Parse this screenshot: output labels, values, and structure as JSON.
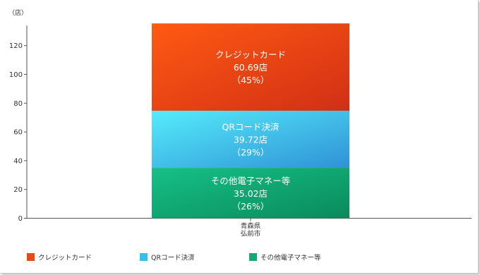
{
  "chart_data": {
    "type": "bar",
    "stacked": true,
    "y_unit_label": "（店）",
    "categories": [
      [
        "青森県",
        "弘前市"
      ]
    ],
    "ylim": [
      0,
      130
    ],
    "yticks": [
      0,
      20,
      40,
      60,
      80,
      100,
      120
    ],
    "grid": false,
    "legend_position": "bottom",
    "series": [
      {
        "name": "その他電子マネー等",
        "values": [
          35.02
        ],
        "value_label": "35.02店",
        "pct_label": "（26%）",
        "color": "#13a874"
      },
      {
        "name": "QRコード決済",
        "values": [
          39.72
        ],
        "value_label": "39.72店",
        "pct_label": "（29%）",
        "color": "#35c0ea"
      },
      {
        "name": "クレジットカード",
        "values": [
          60.69
        ],
        "value_label": "60.69店",
        "pct_label": "（45%）",
        "color": "#e84a17"
      }
    ],
    "legend_order": [
      "クレジットカード",
      "QRコード決済",
      "その他電子マネー等"
    ]
  }
}
